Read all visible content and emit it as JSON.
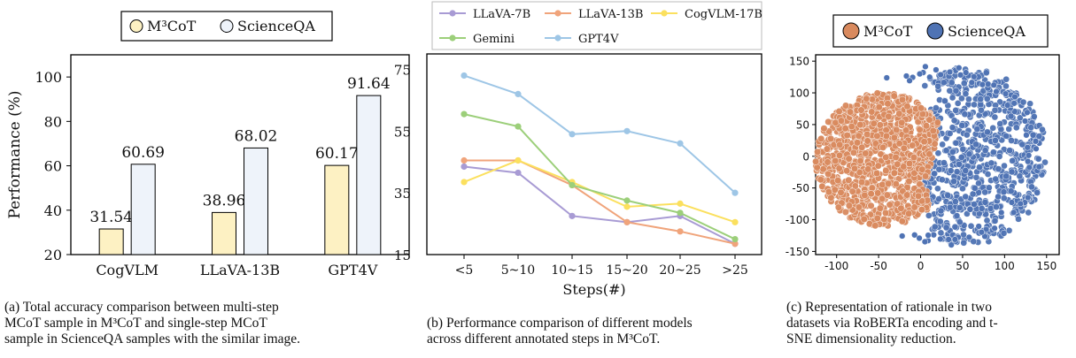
{
  "chart_data": [
    {
      "type": "bar",
      "ylabel": "Performance (%)",
      "ylim": [
        20,
        110
      ],
      "yticks": [
        20,
        40,
        60,
        80,
        100
      ],
      "categories": [
        "CogVLM",
        "LLaVA-13B",
        "GPT4V"
      ],
      "legend": [
        "M³CoT",
        "ScienceQA"
      ],
      "legend_position": "top",
      "series": [
        {
          "name": "M³CoT",
          "values": [
            31.54,
            38.96,
            60.17
          ],
          "color": "#fdf1c3"
        },
        {
          "name": "ScienceQA",
          "values": [
            60.69,
            68.02,
            91.64
          ],
          "color": "#eef3fa"
        }
      ],
      "value_labels": [
        [
          "31.54",
          "38.96",
          "60.17"
        ],
        [
          "60.69",
          "68.02",
          "91.64"
        ]
      ],
      "caption": [
        "(a) Total accuracy comparison between multi-step",
        "MCoT sample in M³CoT and single-step MCoT",
        "sample in ScienceQA samples with the similar image."
      ]
    },
    {
      "type": "line",
      "xlabel": "Steps(#)",
      "categories": [
        "<5",
        "5~10",
        "10~15",
        "15~20",
        "20~25",
        ">25"
      ],
      "ylim": [
        15,
        80
      ],
      "yticks": [
        15,
        35,
        55,
        75
      ],
      "legend_position": "top",
      "series": [
        {
          "name": "LLaVA-7B",
          "values": [
            43.5,
            41.5,
            27.5,
            25.5,
            27.5,
            18.5
          ],
          "color": "#a89bd4"
        },
        {
          "name": "LLaVA-13B",
          "values": [
            45.5,
            45.5,
            37.5,
            25.5,
            22.5,
            18.5
          ],
          "color": "#f0a47b"
        },
        {
          "name": "CogVLM-17B",
          "values": [
            38.5,
            45.5,
            38.5,
            30.5,
            31.5,
            25.5
          ],
          "color": "#fbe05e"
        },
        {
          "name": "Gemini",
          "values": [
            60.5,
            56.5,
            37.5,
            32.5,
            28.5,
            20.0
          ],
          "color": "#9ccf7a"
        },
        {
          "name": "GPT4V",
          "values": [
            73.0,
            67.0,
            54.0,
            55.0,
            51.0,
            35.0
          ],
          "color": "#9ec6e6"
        }
      ],
      "caption": [
        "(b) Performance comparison of different models",
        "across different annotated steps in M³CoT."
      ]
    },
    {
      "type": "scatter",
      "xlim": [
        -125,
        165
      ],
      "ylim": [
        -155,
        160
      ],
      "xticks": [
        -100,
        -50,
        0,
        50,
        100,
        150
      ],
      "yticks": [
        -150,
        -100,
        -50,
        0,
        50,
        100,
        150
      ],
      "legend": [
        "M³CoT",
        "ScienceQA"
      ],
      "legend_position": "top",
      "series": [
        {
          "name": "M³CoT",
          "color": "#d98a5e"
        },
        {
          "name": "ScienceQA",
          "color": "#4f73b4"
        }
      ],
      "caption": [
        "(c) Representation of rationale in two",
        "datasets via RoBERTa encoding and t-",
        "SNE dimensionality reduction."
      ]
    }
  ]
}
